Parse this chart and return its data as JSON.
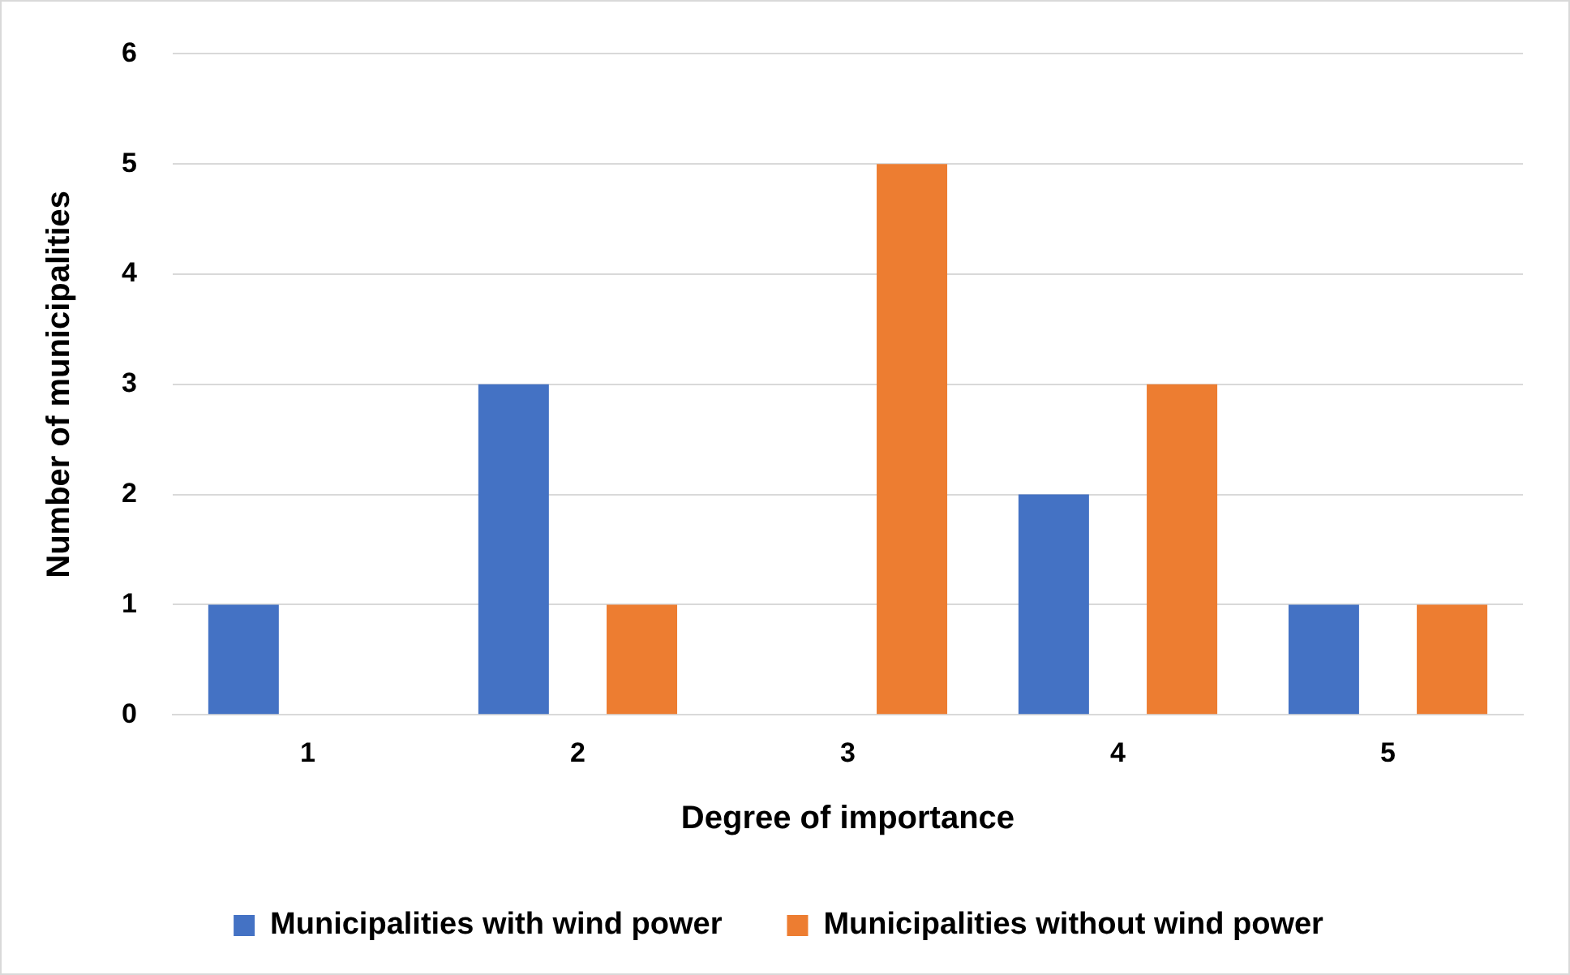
{
  "chart_data": {
    "type": "bar",
    "xlabel": "Degree of importance",
    "ylabel": "Number of municipalities",
    "categories": [
      "1",
      "2",
      "3",
      "4",
      "5"
    ],
    "series": [
      {
        "name": "Municipalities with wind power",
        "color": "#4472c4",
        "values": [
          1,
          3,
          0,
          2,
          1
        ]
      },
      {
        "name": "Municipalities without wind power",
        "color": "#ed7d31",
        "values": [
          0,
          1,
          5,
          3,
          1
        ]
      }
    ],
    "ylim": [
      0,
      6
    ],
    "yticks": [
      0,
      1,
      2,
      3,
      4,
      5,
      6
    ],
    "grid": "y",
    "legend": "bottom"
  }
}
